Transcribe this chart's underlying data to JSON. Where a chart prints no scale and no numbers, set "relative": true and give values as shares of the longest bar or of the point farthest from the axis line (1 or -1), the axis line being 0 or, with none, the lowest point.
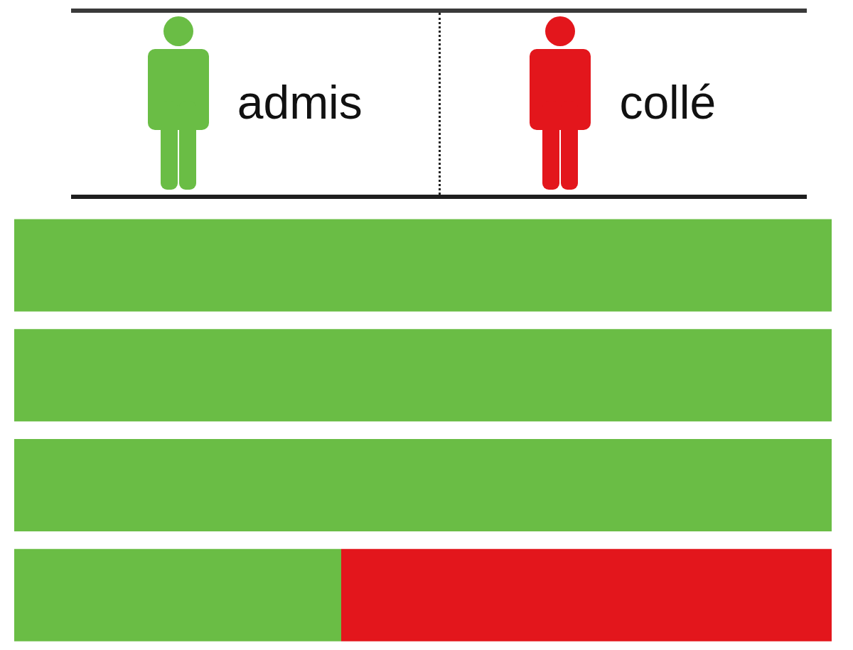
{
  "chart_data": {
    "type": "bar",
    "orientation": "horizontal",
    "stacked": true,
    "relative": true,
    "categories": [
      null,
      null,
      null,
      null
    ],
    "series": [
      {
        "name": "admis",
        "color": "#6abd45",
        "values": [
          1,
          1,
          1,
          0.4
        ]
      },
      {
        "name": "collé",
        "color": "#e3161c",
        "values": [
          0,
          0,
          0,
          0.6
        ]
      }
    ],
    "legend": "top"
  }
}
